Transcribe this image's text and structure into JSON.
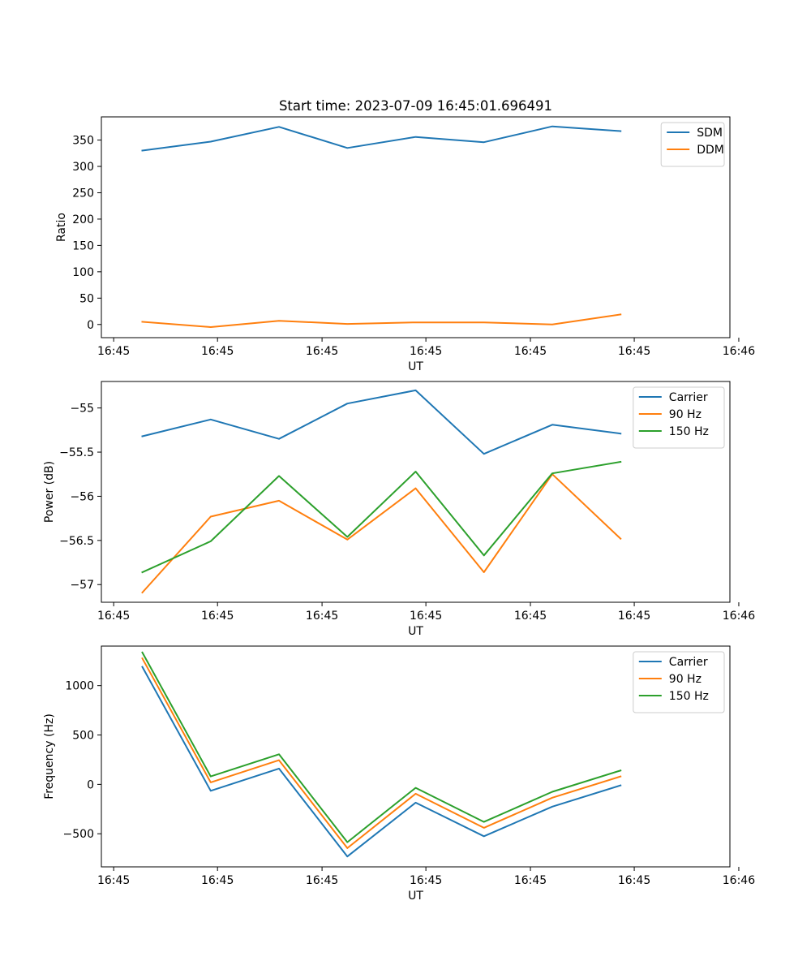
{
  "chart_data": [
    {
      "type": "line",
      "title": "Start time: 2023-07-09 16:45:01.696491",
      "xlabel": "UT",
      "ylabel": "Ratio",
      "xtick_labels": [
        "16:45",
        "16:45",
        "16:45",
        "16:45",
        "16:45",
        "16:45",
        "16:46"
      ],
      "xlim": [
        -0.6,
        8.6
      ],
      "ylim": [
        -25,
        394
      ],
      "yticks": [
        0,
        50,
        100,
        150,
        200,
        250,
        300,
        350
      ],
      "x": [
        0,
        1,
        2,
        3,
        4,
        5,
        6,
        7
      ],
      "legend_position": "top-right",
      "series": [
        {
          "name": "SDM",
          "color": "#1f77b4",
          "values": [
            330,
            347,
            375,
            335,
            356,
            346,
            376,
            367
          ]
        },
        {
          "name": "DDM",
          "color": "#ff7f0e",
          "values": [
            5,
            -5,
            7,
            1,
            4,
            4,
            0,
            19
          ]
        }
      ]
    },
    {
      "type": "line",
      "title": "",
      "xlabel": "UT",
      "ylabel": "Power (dB)",
      "xtick_labels": [
        "16:45",
        "16:45",
        "16:45",
        "16:45",
        "16:45",
        "16:45",
        "16:46"
      ],
      "xlim": [
        -0.6,
        8.6
      ],
      "ylim": [
        -57.2,
        -54.7
      ],
      "yticks": [
        -57.0,
        -56.5,
        -56.0,
        -55.5,
        -55.0
      ],
      "x": [
        0,
        1,
        2,
        3,
        4,
        5,
        6,
        7
      ],
      "legend_position": "top-right",
      "series": [
        {
          "name": "Carrier",
          "color": "#1f77b4",
          "values": [
            -55.32,
            -55.13,
            -55.35,
            -54.95,
            -54.8,
            -55.52,
            -55.19,
            -55.29
          ]
        },
        {
          "name": "90 Hz",
          "color": "#ff7f0e",
          "values": [
            -57.09,
            -56.23,
            -56.05,
            -56.49,
            -55.91,
            -56.86,
            -55.75,
            -56.48
          ]
        },
        {
          "name": "150 Hz",
          "color": "#2ca02c",
          "values": [
            -56.86,
            -56.51,
            -55.77,
            -56.46,
            -55.72,
            -56.67,
            -55.74,
            -55.61
          ]
        }
      ]
    },
    {
      "type": "line",
      "title": "",
      "xlabel": "UT",
      "ylabel": "Frequency (Hz)",
      "xtick_labels": [
        "16:45",
        "16:45",
        "16:45",
        "16:45",
        "16:45",
        "16:45",
        "16:46"
      ],
      "xlim": [
        -0.6,
        8.6
      ],
      "ylim": [
        -835,
        1400
      ],
      "yticks": [
        -500,
        0,
        500,
        1000
      ],
      "x": [
        0,
        1,
        2,
        3,
        4,
        5,
        6,
        7
      ],
      "legend_position": "top-right",
      "series": [
        {
          "name": "Carrier",
          "color": "#1f77b4",
          "values": [
            1190,
            -65,
            160,
            -730,
            -185,
            -525,
            -225,
            -10
          ]
        },
        {
          "name": "90 Hz",
          "color": "#ff7f0e",
          "values": [
            1275,
            20,
            245,
            -645,
            -95,
            -440,
            -135,
            80
          ]
        },
        {
          "name": "150 Hz",
          "color": "#2ca02c",
          "values": [
            1335,
            80,
            305,
            -585,
            -35,
            -380,
            -75,
            140
          ]
        }
      ]
    }
  ]
}
